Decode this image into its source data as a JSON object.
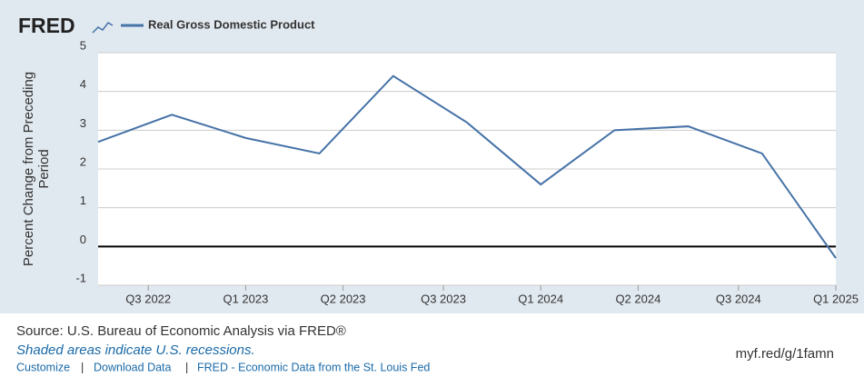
{
  "chart_data": {
    "type": "line",
    "brand": "FRED",
    "ylabel_lines": [
      "Percent Change from Preceding",
      "Period"
    ],
    "x": [
      2022.5,
      2022.75,
      2023.0,
      2023.25,
      2023.5,
      2023.75,
      2024.0,
      2024.25,
      2024.5,
      2024.75,
      2025.0
    ],
    "series": [
      {
        "name": "Real Gross Domestic Product",
        "color": "#4572a7",
        "values": [
          2.7,
          3.4,
          2.8,
          2.4,
          4.4,
          3.2,
          1.6,
          3.0,
          3.1,
          2.4,
          -0.3
        ]
      }
    ],
    "xlim": [
      2022.5,
      2025.0
    ],
    "xticks": [
      {
        "value": 2022.67,
        "label": "Q3 2022"
      },
      {
        "value": 2023.0,
        "label": "Q1 2023"
      },
      {
        "value": 2023.33,
        "label": "Q2 2023"
      },
      {
        "value": 2023.67,
        "label": "Q3 2023"
      },
      {
        "value": 2024.0,
        "label": "Q1 2024"
      },
      {
        "value": 2024.33,
        "label": "Q2 2024"
      },
      {
        "value": 2024.67,
        "label": "Q3 2024"
      },
      {
        "value": 2025.0,
        "label": "Q1 2025"
      }
    ],
    "ylim": [
      -1,
      5
    ],
    "yticks": [
      -1,
      0,
      1,
      2,
      3,
      4,
      5
    ],
    "grid": true,
    "source": "Source: U.S. Bureau of Economic Analysis via FRED®",
    "note": "Shaded areas indicate U.S. recessions.",
    "links": [
      "Customize",
      "Download Data",
      "FRED - Economic Data from the St. Louis Fed"
    ],
    "short_url": "myf.red/g/1famn"
  }
}
